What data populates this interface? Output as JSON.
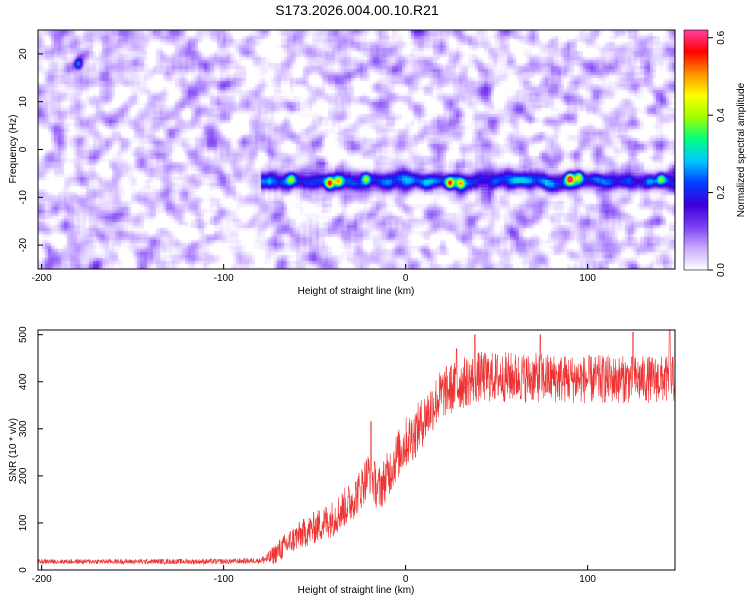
{
  "page": {
    "title": "S173.2026.004.00.10.R21"
  },
  "colors": {
    "signal": "#ee3333",
    "grid": "#000000",
    "colormap": [
      "#ffffff",
      "#c8aaff",
      "#7a3ff0",
      "#3a00dd",
      "#0040ff",
      "#00c8ff",
      "#00ff80",
      "#a0ff00",
      "#ffff00",
      "#ff9000",
      "#ff0000",
      "#ff40a0"
    ]
  },
  "chart_data": [
    {
      "type": "heatmap",
      "title": "S173.2026.004.00.10.R21",
      "xlabel": "Height of straight line (km)",
      "ylabel": "Frequency (Hz)",
      "xlim": [
        -202,
        148
      ],
      "ylim": [
        -25,
        25
      ],
      "xticks": [
        -200,
        -100,
        0,
        100
      ],
      "yticks": [
        -20,
        -10,
        0,
        10,
        20
      ],
      "colorbar": {
        "label": "Normalized spectral amplitude",
        "range": [
          0,
          0.62
        ],
        "ticks": [
          0.0,
          0.2,
          0.4,
          0.6
        ]
      },
      "features": {
        "background_amplitude": 0.08,
        "band_frequency_hz": -6.5,
        "band_start_km": -80,
        "band_amplitude": 0.2,
        "hotspots": [
          {
            "x": -42,
            "y": -7,
            "amp": 0.36
          },
          {
            "x": -37,
            "y": -6.5,
            "amp": 0.3
          },
          {
            "x": -22,
            "y": -6,
            "amp": 0.25
          },
          {
            "x": 24,
            "y": -7,
            "amp": 0.36
          },
          {
            "x": 30,
            "y": -7,
            "amp": 0.27
          },
          {
            "x": 90,
            "y": -6,
            "amp": 0.42
          },
          {
            "x": 95,
            "y": -5.5,
            "amp": 0.3
          },
          {
            "x": -63,
            "y": -6,
            "amp": 0.22
          },
          {
            "x": 140,
            "y": -6,
            "amp": 0.22
          },
          {
            "x": -180,
            "y": 18,
            "amp": 0.22
          }
        ]
      }
    },
    {
      "type": "line",
      "xlabel": "Height of straight line (km)",
      "ylabel": "SNR (10 * v/v)",
      "xlim": [
        -202,
        148
      ],
      "ylim": [
        0,
        510
      ],
      "xticks": [
        -200,
        -100,
        0,
        100
      ],
      "yticks": [
        0,
        100,
        200,
        300,
        400,
        500
      ],
      "trend": {
        "x": [
          -202,
          -150,
          -100,
          -80,
          -75,
          -70,
          -60,
          -50,
          -40,
          -30,
          -25,
          -20,
          -15,
          -10,
          -5,
          0,
          5,
          10,
          15,
          20,
          30,
          40,
          60,
          100,
          148
        ],
        "y": [
          18,
          18,
          18,
          20,
          25,
          40,
          70,
          90,
          110,
          145,
          170,
          210,
          170,
          200,
          240,
          270,
          290,
          320,
          350,
          375,
          395,
          410,
          410,
          405,
          405
        ]
      },
      "noise_amplitude": [
        [
          -202,
          5
        ],
        [
          -80,
          6
        ],
        [
          -70,
          25
        ],
        [
          -40,
          40
        ],
        [
          0,
          55
        ],
        [
          30,
          55
        ],
        [
          148,
          50
        ]
      ],
      "spikes": [
        {
          "x": -19,
          "y": 315
        },
        {
          "x": 28,
          "y": 470
        },
        {
          "x": 38,
          "y": 500
        },
        {
          "x": 74,
          "y": 500
        },
        {
          "x": 125,
          "y": 505
        },
        {
          "x": 145,
          "y": 510
        }
      ]
    }
  ]
}
